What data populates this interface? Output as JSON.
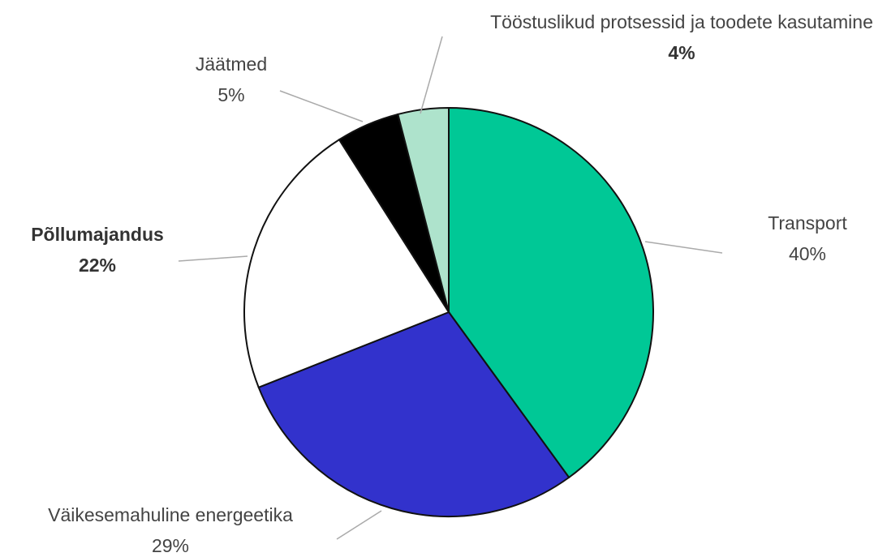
{
  "chart_data": {
    "type": "pie",
    "categories": [
      "Transport",
      "Väikesemahuline energeetika",
      "Põllumajandus",
      "Jäätmed",
      "Tööstuslikud protsessid ja toodete kasutamine"
    ],
    "values": [
      40,
      29,
      22,
      5,
      4
    ],
    "value_labels": [
      "40%",
      "29%",
      "22%",
      "5%",
      "4%"
    ],
    "colors": [
      "#00c896",
      "#3232cc",
      "#ffffff",
      "#000000",
      "#aee3cc"
    ]
  }
}
